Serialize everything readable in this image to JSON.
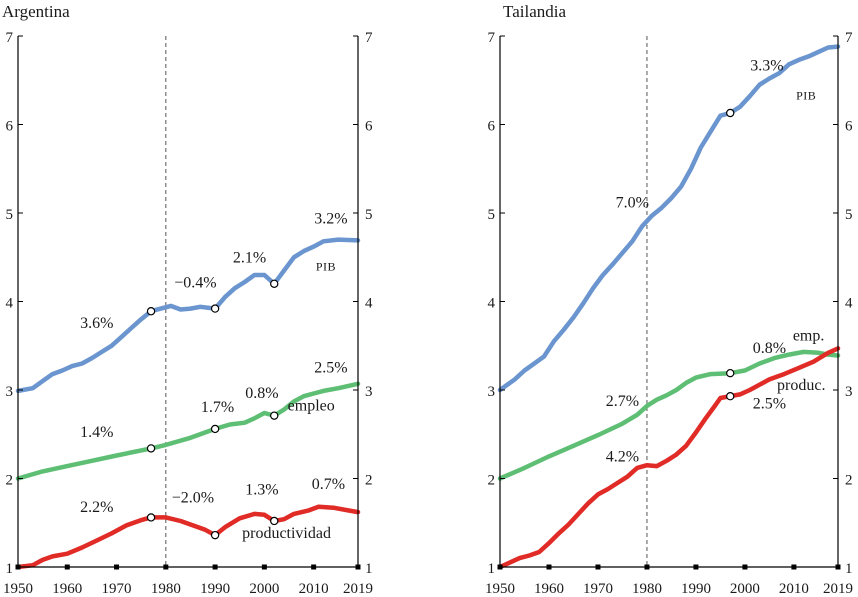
{
  "chart_data": [
    {
      "type": "line",
      "title": "Argentina",
      "xlim": [
        1950,
        2019
      ],
      "ylim": [
        1,
        7
      ],
      "x_ticks": [
        1950,
        1960,
        1970,
        1980,
        1990,
        2000,
        2010,
        2019
      ],
      "y_ticks": [
        1,
        2,
        3,
        4,
        5,
        6,
        7
      ],
      "vline_x": 1980,
      "series": [
        {
          "name": "PIB",
          "color": "#6a95cf",
          "points": [
            [
              1950,
              2.99
            ],
            [
              1953,
              3.02
            ],
            [
              1955,
              3.1
            ],
            [
              1957,
              3.18
            ],
            [
              1959,
              3.22
            ],
            [
              1961,
              3.27
            ],
            [
              1963,
              3.3
            ],
            [
              1965,
              3.36
            ],
            [
              1967,
              3.43
            ],
            [
              1969,
              3.5
            ],
            [
              1971,
              3.6
            ],
            [
              1973,
              3.7
            ],
            [
              1975,
              3.8
            ],
            [
              1977,
              3.89
            ],
            [
              1979,
              3.92
            ],
            [
              1981,
              3.95
            ],
            [
              1983,
              3.91
            ],
            [
              1985,
              3.92
            ],
            [
              1987,
              3.94
            ],
            [
              1990,
              3.92
            ],
            [
              1992,
              4.05
            ],
            [
              1994,
              4.15
            ],
            [
              1996,
              4.22
            ],
            [
              1998,
              4.3
            ],
            [
              2000,
              4.3
            ],
            [
              2002,
              4.2
            ],
            [
              2004,
              4.35
            ],
            [
              2006,
              4.5
            ],
            [
              2008,
              4.57
            ],
            [
              2010,
              4.62
            ],
            [
              2012,
              4.68
            ],
            [
              2015,
              4.7
            ],
            [
              2019,
              4.69
            ]
          ]
        },
        {
          "name": "empleo",
          "color": "#5ebf74",
          "points": [
            [
              1950,
              2.0
            ],
            [
              1955,
              2.08
            ],
            [
              1960,
              2.14
            ],
            [
              1965,
              2.2
            ],
            [
              1970,
              2.26
            ],
            [
              1977,
              2.34
            ],
            [
              1980,
              2.38
            ],
            [
              1985,
              2.46
            ],
            [
              1990,
              2.56
            ],
            [
              1993,
              2.61
            ],
            [
              1996,
              2.63
            ],
            [
              1998,
              2.68
            ],
            [
              2000,
              2.74
            ],
            [
              2002,
              2.71
            ],
            [
              2004,
              2.78
            ],
            [
              2006,
              2.87
            ],
            [
              2008,
              2.93
            ],
            [
              2010,
              2.96
            ],
            [
              2012,
              2.99
            ],
            [
              2015,
              3.02
            ],
            [
              2019,
              3.07
            ]
          ]
        },
        {
          "name": "productividad",
          "color": "#e02b26",
          "points": [
            [
              1950,
              1.0
            ],
            [
              1953,
              1.02
            ],
            [
              1955,
              1.08
            ],
            [
              1957,
              1.12
            ],
            [
              1960,
              1.15
            ],
            [
              1963,
              1.22
            ],
            [
              1966,
              1.3
            ],
            [
              1969,
              1.38
            ],
            [
              1972,
              1.47
            ],
            [
              1975,
              1.53
            ],
            [
              1977,
              1.56
            ],
            [
              1980,
              1.56
            ],
            [
              1983,
              1.52
            ],
            [
              1986,
              1.46
            ],
            [
              1988,
              1.42
            ],
            [
              1990,
              1.36
            ],
            [
              1992,
              1.45
            ],
            [
              1995,
              1.55
            ],
            [
              1998,
              1.6
            ],
            [
              2000,
              1.59
            ],
            [
              2002,
              1.52
            ],
            [
              2004,
              1.54
            ],
            [
              2006,
              1.6
            ],
            [
              2009,
              1.64
            ],
            [
              2011,
              1.68
            ],
            [
              2014,
              1.67
            ],
            [
              2017,
              1.64
            ],
            [
              2019,
              1.62
            ]
          ]
        }
      ],
      "markers": [
        {
          "series": "PIB",
          "x": 1977,
          "y": 3.89
        },
        {
          "series": "PIB",
          "x": 1990,
          "y": 3.92
        },
        {
          "series": "PIB",
          "x": 2002,
          "y": 4.2
        },
        {
          "series": "empleo",
          "x": 1977,
          "y": 2.34
        },
        {
          "series": "empleo",
          "x": 1990,
          "y": 2.56
        },
        {
          "series": "empleo",
          "x": 2002,
          "y": 2.71
        },
        {
          "series": "productividad",
          "x": 1977,
          "y": 1.56
        },
        {
          "series": "productividad",
          "x": 1990,
          "y": 1.36
        },
        {
          "series": "productividad",
          "x": 2002,
          "y": 1.52
        }
      ],
      "annotations": [
        {
          "text": "3.6%",
          "x": 1966,
          "y": 3.7
        },
        {
          "text": "−0.4%",
          "x": 1986,
          "y": 4.16
        },
        {
          "text": "2.1%",
          "x": 1997,
          "y": 4.44
        },
        {
          "text": "3.2%",
          "x": 2013.5,
          "y": 4.88
        },
        {
          "text": "1.4%",
          "x": 1966,
          "y": 2.47
        },
        {
          "text": "1.7%",
          "x": 1990.5,
          "y": 2.75
        },
        {
          "text": "0.8%",
          "x": 1999.5,
          "y": 2.91
        },
        {
          "text": "2.5%",
          "x": 2013.5,
          "y": 3.2
        },
        {
          "text": "2.2%",
          "x": 1966,
          "y": 1.62
        },
        {
          "text": "−2.0%",
          "x": 1985.5,
          "y": 1.73
        },
        {
          "text": "1.3%",
          "x": 1999.5,
          "y": 1.82
        },
        {
          "text": "0.7%",
          "x": 2013,
          "y": 1.88
        }
      ],
      "series_labels": [
        {
          "text": "PIB",
          "x": 2012.5,
          "y": 4.35,
          "small": true
        },
        {
          "text": "empleo",
          "x": 2009.5,
          "y": 2.77,
          "small": false
        },
        {
          "text": "productividad",
          "x": 2004.5,
          "y": 1.33,
          "small": false
        }
      ]
    },
    {
      "type": "line",
      "title": "Tailandia",
      "xlim": [
        1950,
        2019
      ],
      "ylim": [
        1,
        7
      ],
      "x_ticks": [
        1950,
        1960,
        1970,
        1980,
        1990,
        2000,
        2010,
        2019
      ],
      "y_ticks": [
        1,
        2,
        3,
        4,
        5,
        6,
        7
      ],
      "vline_x": 1980,
      "series": [
        {
          "name": "PIB",
          "color": "#6a95cf",
          "points": [
            [
              1950,
              3.0
            ],
            [
              1953,
              3.12
            ],
            [
              1955,
              3.22
            ],
            [
              1957,
              3.3
            ],
            [
              1959,
              3.38
            ],
            [
              1961,
              3.55
            ],
            [
              1963,
              3.68
            ],
            [
              1965,
              3.82
            ],
            [
              1967,
              3.98
            ],
            [
              1969,
              4.15
            ],
            [
              1971,
              4.3
            ],
            [
              1973,
              4.42
            ],
            [
              1975,
              4.55
            ],
            [
              1977,
              4.68
            ],
            [
              1979,
              4.85
            ],
            [
              1981,
              4.97
            ],
            [
              1983,
              5.06
            ],
            [
              1985,
              5.17
            ],
            [
              1987,
              5.3
            ],
            [
              1989,
              5.5
            ],
            [
              1991,
              5.74
            ],
            [
              1993,
              5.92
            ],
            [
              1995,
              6.1
            ],
            [
              1997,
              6.13
            ],
            [
              1999,
              6.2
            ],
            [
              2001,
              6.32
            ],
            [
              2003,
              6.45
            ],
            [
              2005,
              6.52
            ],
            [
              2007,
              6.58
            ],
            [
              2009,
              6.68
            ],
            [
              2011,
              6.73
            ],
            [
              2013,
              6.77
            ],
            [
              2015,
              6.82
            ],
            [
              2017,
              6.87
            ],
            [
              2019,
              6.88
            ]
          ]
        },
        {
          "name": "emp.",
          "color": "#5ebf74",
          "points": [
            [
              1950,
              2.0
            ],
            [
              1955,
              2.12
            ],
            [
              1960,
              2.25
            ],
            [
              1965,
              2.37
            ],
            [
              1970,
              2.49
            ],
            [
              1975,
              2.62
            ],
            [
              1978,
              2.72
            ],
            [
              1980,
              2.82
            ],
            [
              1982,
              2.89
            ],
            [
              1984,
              2.94
            ],
            [
              1986,
              3.0
            ],
            [
              1988,
              3.08
            ],
            [
              1990,
              3.14
            ],
            [
              1993,
              3.18
            ],
            [
              1997,
              3.19
            ],
            [
              2000,
              3.22
            ],
            [
              2003,
              3.3
            ],
            [
              2006,
              3.36
            ],
            [
              2009,
              3.4
            ],
            [
              2012,
              3.43
            ],
            [
              2015,
              3.42
            ],
            [
              2017,
              3.4
            ],
            [
              2019,
              3.39
            ]
          ]
        },
        {
          "name": "produc.",
          "color": "#e02b26",
          "points": [
            [
              1950,
              1.0
            ],
            [
              1952,
              1.05
            ],
            [
              1954,
              1.1
            ],
            [
              1956,
              1.13
            ],
            [
              1958,
              1.17
            ],
            [
              1960,
              1.27
            ],
            [
              1962,
              1.38
            ],
            [
              1964,
              1.48
            ],
            [
              1966,
              1.6
            ],
            [
              1968,
              1.72
            ],
            [
              1970,
              1.82
            ],
            [
              1972,
              1.88
            ],
            [
              1974,
              1.95
            ],
            [
              1976,
              2.02
            ],
            [
              1978,
              2.12
            ],
            [
              1980,
              2.15
            ],
            [
              1982,
              2.14
            ],
            [
              1984,
              2.2
            ],
            [
              1986,
              2.27
            ],
            [
              1988,
              2.37
            ],
            [
              1990,
              2.52
            ],
            [
              1992,
              2.68
            ],
            [
              1994,
              2.83
            ],
            [
              1995,
              2.91
            ],
            [
              1997,
              2.93
            ],
            [
              1999,
              2.95
            ],
            [
              2001,
              3.0
            ],
            [
              2003,
              3.06
            ],
            [
              2005,
              3.12
            ],
            [
              2008,
              3.18
            ],
            [
              2011,
              3.25
            ],
            [
              2014,
              3.32
            ],
            [
              2017,
              3.42
            ],
            [
              2019,
              3.47
            ]
          ]
        }
      ],
      "markers": [
        {
          "series": "PIB",
          "x": 1997,
          "y": 6.13
        },
        {
          "series": "emp.",
          "x": 1997,
          "y": 3.19
        },
        {
          "series": "produc.",
          "x": 1997,
          "y": 2.93
        }
      ],
      "annotations": [
        {
          "text": "7.0%",
          "x": 1977,
          "y": 5.06
        },
        {
          "text": "3.3%",
          "x": 2004.5,
          "y": 6.61
        },
        {
          "text": "2.7%",
          "x": 1975,
          "y": 2.82
        },
        {
          "text": "0.8%",
          "x": 2005,
          "y": 3.42
        },
        {
          "text": "4.2%",
          "x": 1975,
          "y": 2.19
        },
        {
          "text": "2.5%",
          "x": 2005,
          "y": 2.79
        }
      ],
      "series_labels": [
        {
          "text": "PIB",
          "x": 2012.5,
          "y": 6.28,
          "small": true
        },
        {
          "text": "emp.",
          "x": 2013,
          "y": 3.56,
          "small": false
        },
        {
          "text": "produc.",
          "x": 2011.5,
          "y": 3.0,
          "small": false
        }
      ]
    }
  ]
}
